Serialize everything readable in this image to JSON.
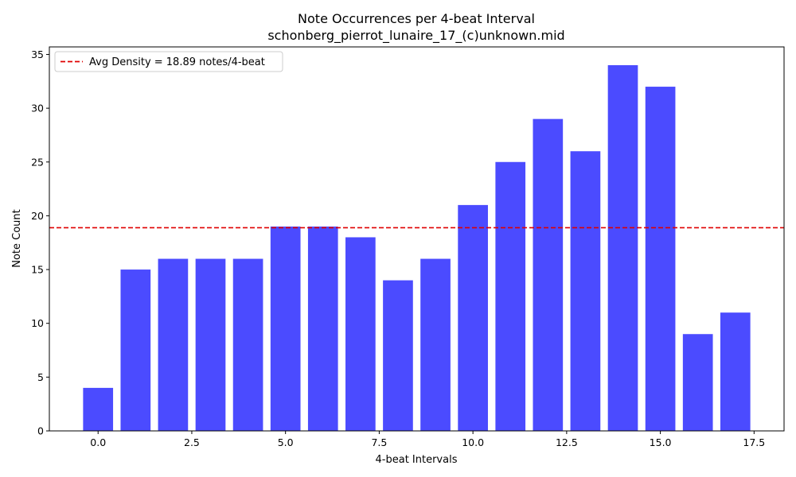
{
  "chart_data": {
    "type": "bar",
    "title": "Note Occurrences per 4-beat Interval",
    "subtitle": "schonberg_pierrot_lunaire_17_(c)unknown.mid",
    "xlabel": "4-beat Intervals",
    "ylabel": "Note Count",
    "x": [
      0,
      1,
      2,
      3,
      4,
      5,
      6,
      7,
      8,
      9,
      10,
      11,
      12,
      13,
      14,
      15,
      16,
      17
    ],
    "values": [
      4,
      15,
      16,
      16,
      16,
      19,
      19,
      18,
      14,
      16,
      21,
      25,
      29,
      26,
      34,
      32,
      9,
      11
    ],
    "bar_color": "#4b4bff",
    "xlim": [
      -1.3,
      18.3
    ],
    "ylim": [
      0,
      35.7
    ],
    "xticks": [
      0.0,
      2.5,
      5.0,
      7.5,
      10.0,
      12.5,
      15.0,
      17.5
    ],
    "xtick_labels": [
      "0.0",
      "2.5",
      "5.0",
      "7.5",
      "10.0",
      "12.5",
      "15.0",
      "17.5"
    ],
    "yticks": [
      0,
      5,
      10,
      15,
      20,
      25,
      30,
      35
    ],
    "ytick_labels": [
      "0",
      "5",
      "10",
      "15",
      "20",
      "25",
      "30",
      "35"
    ],
    "reference_line": {
      "value": 18.89,
      "color": "#e00000",
      "style": "dashed",
      "label": "Avg Density = 18.89 notes/4-beat"
    },
    "legend_position": "top-left",
    "grid": false
  }
}
